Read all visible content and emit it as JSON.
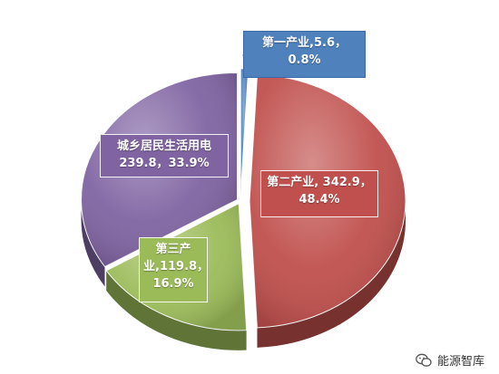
{
  "chart_data": {
    "type": "pie",
    "title": "",
    "three_d": true,
    "slices": [
      {
        "name": "第一产业",
        "value": 5.6,
        "percent": "0.8%",
        "color": "#4f81bd",
        "label_line1": "第一产业,5.6，",
        "label_line2": "0.8%"
      },
      {
        "name": "第二产业",
        "value": 342.9,
        "percent": "48.4%",
        "color": "#c0504d",
        "label_line1": "第二产业, 342.9，",
        "label_line2": "48.4%"
      },
      {
        "name": "第三产业",
        "value": 119.8,
        "percent": "16.9%",
        "color": "#9bbb59",
        "label_line1": "第三产",
        "label_line2": "业,119.8，",
        "label_line3": "16.9%"
      },
      {
        "name": "城乡居民生活用电",
        "value": 239.8,
        "percent": "33.9%",
        "color": "#8064a2",
        "label_line1": "城乡居民生活用电",
        "label_line2": "239.8，33.9%"
      }
    ]
  },
  "watermark": {
    "text": "能源智库",
    "icon": "wechat-icon"
  }
}
